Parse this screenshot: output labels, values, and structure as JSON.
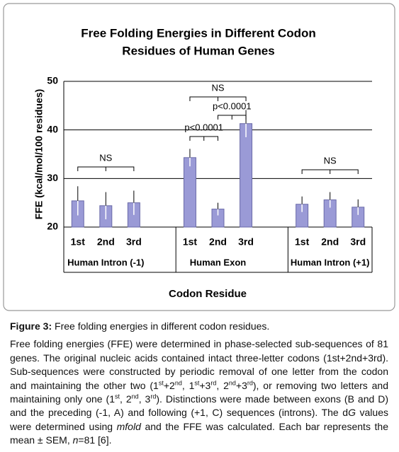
{
  "chart_data": {
    "type": "bar",
    "title": [
      "Free Folding Energies in Different Codon",
      "Residues of Human Genes"
    ],
    "y_label": "FFE (kcal/mol/100 residues)",
    "x_label": "Codon Residue",
    "categories": [
      "1st",
      "2nd",
      "3rd",
      null,
      "1st",
      "2nd",
      "3rd",
      null,
      "1st",
      "2nd",
      "3rd"
    ],
    "groups": [
      "Human Intron (-1)",
      "Human Exon",
      "Human Intron (+1)"
    ],
    "values": [
      25.4,
      24.4,
      25.0,
      null,
      34.3,
      23.7,
      41.3,
      null,
      24.7,
      25.6,
      24.1
    ],
    "errors": [
      3.0,
      2.8,
      2.5,
      null,
      1.8,
      1.3,
      2.8,
      null,
      1.6,
      1.6,
      1.6
    ],
    "color": "#9a9ad6",
    "ylim": [
      20,
      50
    ],
    "yticks": [
      20,
      30,
      40,
      50
    ],
    "grid": true,
    "annotations": [
      "NS",
      "p<0.0001",
      "p<0.0001",
      "NS",
      "NS"
    ]
  },
  "caption": {
    "label": "Figure 3:",
    "title": " Free folding energies in different codon residues.",
    "body": [
      {
        "t": "Free folding energies (FFE) were determined in phase-selected sub-sequences of 81 genes. The original nucleic acids contained intact three-letter codons (1st+2nd+3rd). Sub-sequences were constructed by periodic removal of one letter from the codon and maintaining the other two (1"
      },
      {
        "t": "st",
        "s": "sup"
      },
      {
        "t": "+2"
      },
      {
        "t": "nd",
        "s": "sup"
      },
      {
        "t": ", 1"
      },
      {
        "t": "st",
        "s": "sup"
      },
      {
        "t": "+3"
      },
      {
        "t": "rd",
        "s": "sup"
      },
      {
        "t": ", 2"
      },
      {
        "t": "nd",
        "s": "sup"
      },
      {
        "t": "+3"
      },
      {
        "t": "rd",
        "s": "sup"
      },
      {
        "t": "), or removing two letters and maintaining only one (1"
      },
      {
        "t": "st",
        "s": "sup"
      },
      {
        "t": ", 2"
      },
      {
        "t": "nd",
        "s": "sup"
      },
      {
        "t": ", 3"
      },
      {
        "t": "rd",
        "s": "sup"
      },
      {
        "t": "). Distinctions were made between exons (B and D) and the preceding (-1, A) and following (+1, C) sequences (introns). The d"
      },
      {
        "t": "G",
        "s": "i"
      },
      {
        "t": " values were determined using "
      },
      {
        "t": "mfold",
        "s": "i"
      },
      {
        "t": " and the FFE was calculated. Each bar represents the mean ± SEM, "
      },
      {
        "t": "n",
        "s": "i"
      },
      {
        "t": "=81 [6]."
      }
    ]
  }
}
